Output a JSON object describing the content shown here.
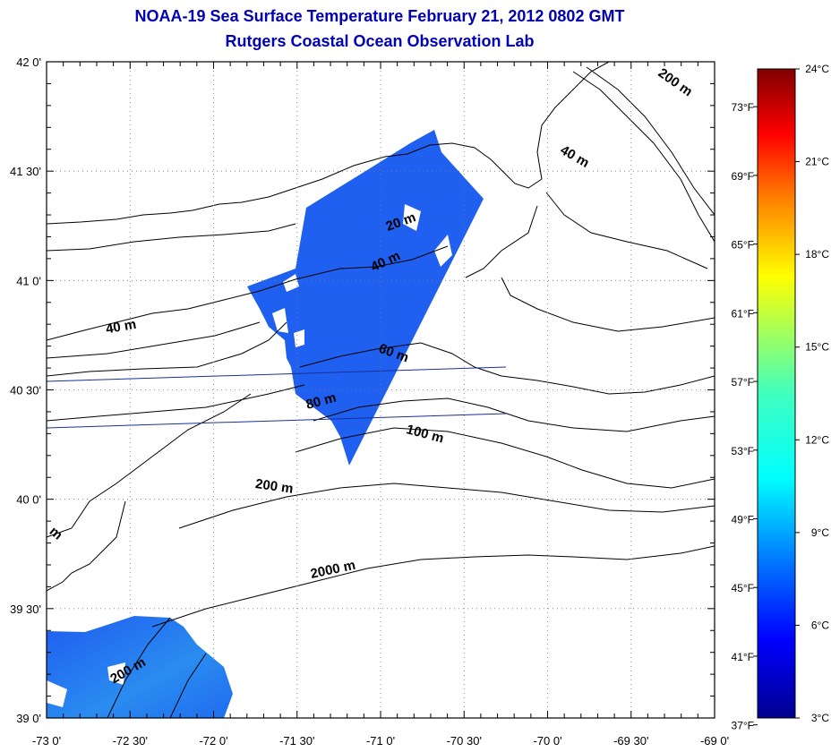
{
  "header": {
    "title": "NOAA-19 Sea Surface Temperature February 21, 2012 0802 GMT",
    "subtitle": "Rutgers Coastal Ocean Observation Lab"
  },
  "map": {
    "lon_labels": [
      "-73 0'",
      "-72 30'",
      "-72 0'",
      "-71 30'",
      "-71 0'",
      "-70 30'",
      "-70 0'",
      "-69 30'",
      "-69 0'"
    ],
    "lat_labels": [
      "42 0'",
      "41 30'",
      "41 0'",
      "40 30'",
      "40 0'",
      "39 30'",
      "39 0'"
    ],
    "lon_range": [
      -73,
      -69
    ],
    "lat_range": [
      39,
      42
    ],
    "depth_labels": [
      {
        "text": "20 m",
        "lon": -70.87,
        "lat": 41.25
      },
      {
        "text": "40 m",
        "lon": -70.96,
        "lat": 41.07
      },
      {
        "text": "40 m",
        "lon": -72.55,
        "lat": 40.77
      },
      {
        "text": "40 m",
        "lon": -69.85,
        "lat": 41.55
      },
      {
        "text": "60 m",
        "lon": -70.93,
        "lat": 40.65
      },
      {
        "text": "80 m",
        "lon": -71.35,
        "lat": 40.43
      },
      {
        "text": "100 m",
        "lon": -70.74,
        "lat": 40.28
      },
      {
        "text": "200 m",
        "lon": -71.64,
        "lat": 40.04
      },
      {
        "text": "2000 m",
        "lon": -71.28,
        "lat": 39.66
      },
      {
        "text": "200 m",
        "lon": -69.25,
        "lat": 41.89
      },
      {
        "text": "200 m",
        "lon": -72.5,
        "lat": 39.2
      },
      {
        "text": "m",
        "lon": -72.96,
        "lat": 39.83
      }
    ],
    "water_color": "#1f5cf0",
    "grid": true
  },
  "colorbar": {
    "celsius_labels": [
      "24°C",
      "21°C",
      "18°C",
      "15°C",
      "12°C",
      "9°C",
      "6°C",
      "3°C"
    ],
    "fahrenheit_labels": [
      "73°F",
      "69°F",
      "65°F",
      "61°F",
      "57°F",
      "53°F",
      "49°F",
      "45°F",
      "41°F",
      "37°F"
    ],
    "range_c": [
      3,
      24
    ]
  }
}
